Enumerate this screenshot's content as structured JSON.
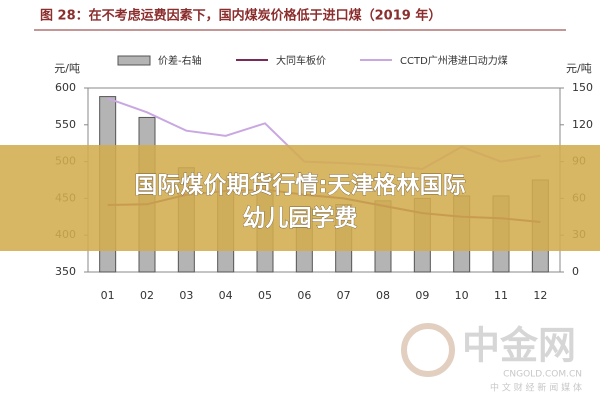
{
  "chart_data": {
    "type": "combo",
    "title": "图 28：在不考虑运费因素下，国内煤炭价格低于进口煤（2019 年）",
    "ylabel": "元/吨",
    "y2label": "元/吨",
    "categories": [
      "01",
      "02",
      "03",
      "04",
      "05",
      "06",
      "07",
      "08",
      "09",
      "10",
      "11",
      "12"
    ],
    "series": [
      {
        "name": "价差-右轴",
        "type": "bar",
        "axis": "y2",
        "color": "#b4b4b4",
        "values": [
          143,
          126,
          85,
          75,
          80,
          52,
          55,
          58,
          60,
          62,
          62,
          75
        ]
      },
      {
        "name": "大同车板价",
        "type": "line",
        "color": "#7a2a58",
        "values": [
          441,
          442,
          455,
          460,
          462,
          455,
          450,
          440,
          430,
          425,
          423,
          418
        ]
      },
      {
        "name": "CCTD广州港进口动力煤",
        "type": "line",
        "color": "#c9a8e2",
        "values": [
          586,
          567,
          542,
          535,
          552,
          500,
          498,
          495,
          490,
          520,
          500,
          508
        ]
      }
    ],
    "ylim": [
      350,
      600
    ],
    "yticks": [
      350,
      400,
      450,
      500,
      550,
      600
    ],
    "y2lim": [
      0,
      150
    ],
    "y2ticks": [
      0,
      30,
      60,
      90,
      120,
      150
    ]
  },
  "overlay": {
    "headline": [
      "国际煤价期货行情:天津格林国际",
      "幼儿园学费"
    ],
    "watermark": {
      "brand": "中金网",
      "site": "CNGOLD.COM.CN",
      "tagline": "中 文 财 经 新 闻 媒 体"
    }
  }
}
